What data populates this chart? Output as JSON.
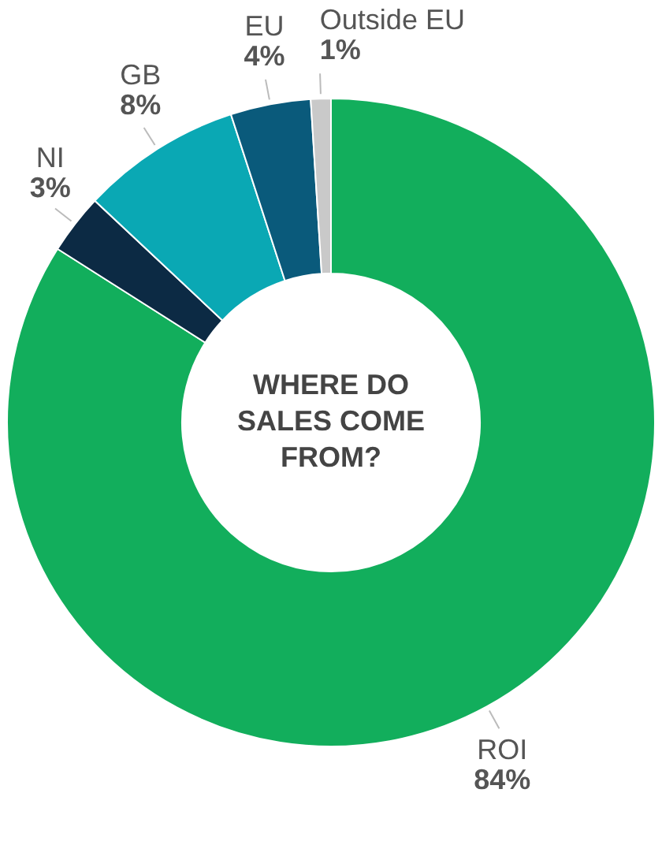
{
  "chart_data": {
    "type": "donut",
    "title": "WHERE DO SALES COME FROM?",
    "categories": [
      "ROI",
      "NI",
      "GB",
      "EU",
      "Outside EU"
    ],
    "values": [
      84,
      3,
      8,
      4,
      1
    ],
    "colors": [
      "#12ae5c",
      "#0c2a44",
      "#0aa8b4",
      "#0a5a7b",
      "#c9c9c9"
    ],
    "value_labels": [
      "84%",
      "3%",
      "8%",
      "4%",
      "1%"
    ],
    "legend": false
  }
}
